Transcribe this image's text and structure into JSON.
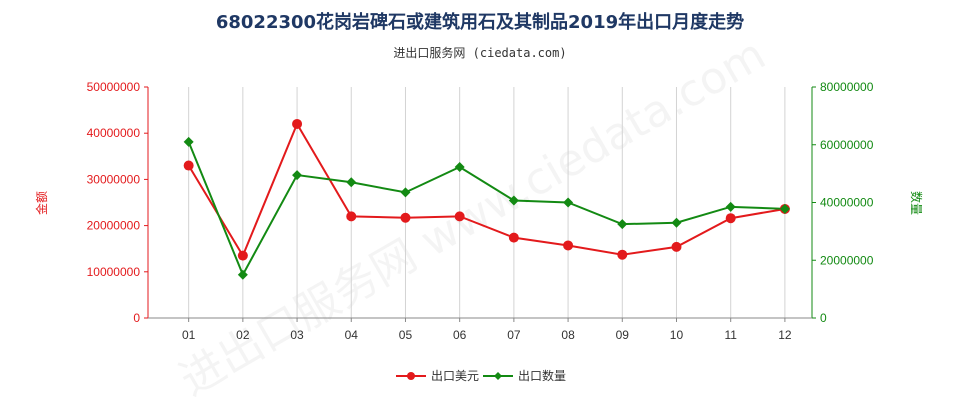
{
  "title": "68022300花岗岩碑石或建筑用石及其制品2019年出口月度走势",
  "subtitle": "进出口服务网 (ciedata.com)",
  "watermark": "进出口服务网 www.ciedata.com",
  "colors": {
    "amount": "#e31a1c",
    "quantity": "#138a13",
    "axis": "#888888",
    "grid": "#d3d3d3"
  },
  "chart_data": {
    "type": "line",
    "categories": [
      "01",
      "02",
      "03",
      "04",
      "05",
      "06",
      "07",
      "08",
      "09",
      "10",
      "11",
      "12"
    ],
    "series": [
      {
        "name": "出口美元",
        "axis": "left",
        "values": [
          33000000,
          13500000,
          42000000,
          22000000,
          21700000,
          22000000,
          17400000,
          15700000,
          13700000,
          15400000,
          21600000,
          23600000
        ]
      },
      {
        "name": "出口数量",
        "axis": "right",
        "values": [
          61000000,
          15000000,
          49500000,
          47000000,
          43500000,
          52300000,
          40700000,
          40000000,
          32500000,
          33000000,
          38500000,
          37800000
        ]
      }
    ],
    "ylabel": "金额",
    "y2label": "数量",
    "ylim": [
      0,
      50000000
    ],
    "y2lim": [
      0,
      80000000
    ],
    "yticks": [
      "0",
      "10000000",
      "20000000",
      "30000000",
      "40000000",
      "50000000"
    ],
    "y2ticks": [
      "0",
      "20000000",
      "40000000",
      "60000000",
      "80000000"
    ],
    "grid": "vertical",
    "legend_position": "bottom-center"
  }
}
